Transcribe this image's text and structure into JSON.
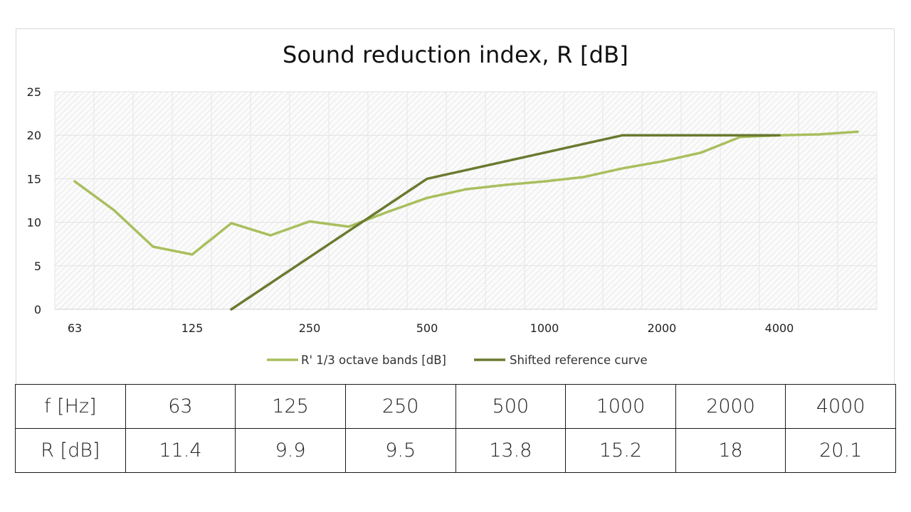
{
  "chart_data": {
    "type": "line",
    "title": "Sound reduction index, R  [dB]",
    "xlabel": "",
    "ylabel": "",
    "ylim": [
      0,
      25
    ],
    "yticks": [
      "0",
      "5",
      "10",
      "15",
      "20",
      "25"
    ],
    "xticks": [
      {
        "index": 0,
        "label": "63"
      },
      {
        "index": 3,
        "label": "125"
      },
      {
        "index": 6,
        "label": "250"
      },
      {
        "index": 9,
        "label": "500"
      },
      {
        "index": 12,
        "label": "1000"
      },
      {
        "index": 15,
        "label": "2000"
      },
      {
        "index": 18,
        "label": "4000"
      }
    ],
    "n_bands": 21,
    "grid": true,
    "legend_position": "bottom",
    "series": [
      {
        "name": "R' 1/3 octave bands [dB]",
        "color": "#a9bf5e",
        "x": [
          0,
          1,
          2,
          3,
          4,
          5,
          6,
          7,
          8,
          9,
          10,
          11,
          12,
          13,
          14,
          15,
          16,
          17,
          18,
          19,
          20
        ],
        "values": [
          14.7,
          11.4,
          7.2,
          6.3,
          9.9,
          8.5,
          10.1,
          9.5,
          11.2,
          12.8,
          13.8,
          14.3,
          14.7,
          15.2,
          16.2,
          17.0,
          18.0,
          19.8,
          20.0,
          20.1,
          20.4
        ]
      },
      {
        "name": "Shifted reference curve",
        "color": "#6a7a30",
        "x": [
          4,
          5,
          6,
          7,
          8,
          9,
          10,
          11,
          12,
          13,
          14,
          15,
          16,
          17,
          18
        ],
        "values": [
          0,
          3,
          6,
          9,
          12,
          15,
          16,
          17,
          18,
          19,
          20,
          20,
          20,
          20,
          20
        ]
      }
    ]
  },
  "table": {
    "header_label": "f [Hz]",
    "row_label": "R [dB]",
    "frequencies": [
      "63",
      "125",
      "250",
      "500",
      "1000",
      "2000",
      "4000"
    ],
    "values": [
      "11.4",
      "9.9",
      "9.5",
      "13.8",
      "15.2",
      "18",
      "20.1"
    ]
  }
}
